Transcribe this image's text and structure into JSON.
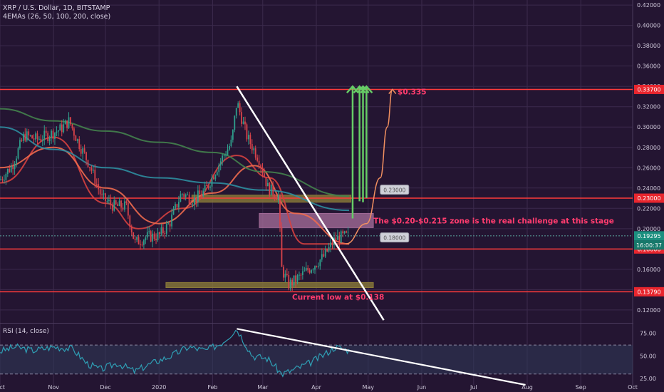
{
  "header": {
    "symbol_line": "XRP / U.S. Dollar, 1D, BITSTAMP",
    "indicator_line": "4EMAs (26, 50, 100, 200, close)",
    "rsi_label": "RSI (14, close)"
  },
  "colors": {
    "background": "#241532",
    "grid": "#3b2a4c",
    "level_line": "#ff3b3b",
    "ema26": "#d6403f",
    "ema50": "#ef6a4e",
    "ema100": "#2d8ea0",
    "ema200": "#44824d",
    "arrow_green": "#66cc66",
    "arrow_orange": "#f29060",
    "annotation_text": "#ff3c6e",
    "zone_olive": "#8a7a38",
    "zone_pink": "#a06a96",
    "rsi_line": "#2f9fb5",
    "last_price_tag": "#1b8f7f"
  },
  "chart_data": {
    "type": "candlestick",
    "title": "XRP / U.S. Dollar, 1D, BITSTAMP",
    "x_ticks": [
      "Oct",
      "Nov",
      "Dec",
      "2020",
      "Feb",
      "Mar",
      "Apr",
      "May",
      "Jun",
      "Jul",
      "Aug",
      "Sep",
      "Oct"
    ],
    "y_ticks": [
      "0.12000",
      "0.14000",
      "0.16000",
      "0.18000",
      "0.20000",
      "0.22000",
      "0.24000",
      "0.26000",
      "0.28000",
      "0.30000",
      "0.32000",
      "0.34000",
      "0.36000",
      "0.38000",
      "0.40000",
      "0.42000"
    ],
    "ylim": [
      0.108,
      0.425
    ],
    "horizontal_levels": [
      {
        "value": 0.337,
        "label": "0.33700"
      },
      {
        "value": 0.23,
        "label": "0.23000"
      },
      {
        "value": 0.18,
        "label": "0.18000"
      },
      {
        "value": 0.1379,
        "label": "0.13790"
      }
    ],
    "last_price": {
      "value": 0.19295,
      "label": "0.19295",
      "countdown": "16:00:37"
    },
    "price_path": [
      [
        "2019-10-01",
        0.248
      ],
      [
        "2019-10-08",
        0.262
      ],
      [
        "2019-10-15",
        0.292
      ],
      [
        "2019-10-22",
        0.288
      ],
      [
        "2019-10-29",
        0.292
      ],
      [
        "2019-11-05",
        0.298
      ],
      [
        "2019-11-10",
        0.306
      ],
      [
        "2019-11-15",
        0.286
      ],
      [
        "2019-11-22",
        0.262
      ],
      [
        "2019-11-29",
        0.23
      ],
      [
        "2019-12-06",
        0.222
      ],
      [
        "2019-12-13",
        0.222
      ],
      [
        "2019-12-18",
        0.186
      ],
      [
        "2019-12-25",
        0.192
      ],
      [
        "2020-01-01",
        0.193
      ],
      [
        "2020-01-07",
        0.205
      ],
      [
        "2020-01-14",
        0.235
      ],
      [
        "2020-01-21",
        0.228
      ],
      [
        "2020-01-28",
        0.238
      ],
      [
        "2020-02-05",
        0.265
      ],
      [
        "2020-02-12",
        0.285
      ],
      [
        "2020-02-15",
        0.325
      ],
      [
        "2020-02-21",
        0.29
      ],
      [
        "2020-02-28",
        0.268
      ],
      [
        "2020-03-04",
        0.24
      ],
      [
        "2020-03-10",
        0.232
      ],
      [
        "2020-03-12",
        0.16
      ],
      [
        "2020-03-16",
        0.145
      ],
      [
        "2020-03-22",
        0.152
      ],
      [
        "2020-03-29",
        0.162
      ],
      [
        "2020-04-05",
        0.172
      ],
      [
        "2020-04-12",
        0.19
      ],
      [
        "2020-04-16",
        0.192
      ],
      [
        "2020-04-20",
        0.193
      ]
    ],
    "ema_series": [
      {
        "name": "EMA 26",
        "points": [
          [
            "2019-10-01",
            0.245
          ],
          [
            "2019-11-01",
            0.29
          ],
          [
            "2019-12-01",
            0.225
          ],
          [
            "2019-12-20",
            0.2
          ],
          [
            "2020-01-15",
            0.22
          ],
          [
            "2020-02-15",
            0.272
          ],
          [
            "2020-03-05",
            0.25
          ],
          [
            "2020-03-25",
            0.185
          ],
          [
            "2020-04-20",
            0.185
          ]
        ]
      },
      {
        "name": "EMA 50",
        "points": [
          [
            "2019-10-01",
            0.26
          ],
          [
            "2019-11-01",
            0.28
          ],
          [
            "2019-12-01",
            0.24
          ],
          [
            "2020-01-01",
            0.205
          ],
          [
            "2020-02-01",
            0.235
          ],
          [
            "2020-02-25",
            0.262
          ],
          [
            "2020-03-20",
            0.215
          ],
          [
            "2020-04-20",
            0.185
          ]
        ]
      },
      {
        "name": "EMA 100",
        "points": [
          [
            "2019-10-01",
            0.3
          ],
          [
            "2019-11-01",
            0.278
          ],
          [
            "2019-12-01",
            0.26
          ],
          [
            "2020-01-01",
            0.25
          ],
          [
            "2020-02-01",
            0.245
          ],
          [
            "2020-03-01",
            0.238
          ],
          [
            "2020-04-20",
            0.218
          ]
        ]
      },
      {
        "name": "EMA 200",
        "points": [
          [
            "2019-10-01",
            0.318
          ],
          [
            "2019-11-01",
            0.306
          ],
          [
            "2019-12-01",
            0.296
          ],
          [
            "2020-01-01",
            0.285
          ],
          [
            "2020-02-01",
            0.275
          ],
          [
            "2020-03-01",
            0.256
          ],
          [
            "2020-04-20",
            0.232
          ]
        ]
      }
    ],
    "trendline": {
      "from": [
        "2020-02-15",
        0.34
      ],
      "to": [
        "2020-05-10",
        0.11
      ]
    },
    "zones": [
      {
        "from": "2020-01-20",
        "to": "2020-04-21",
        "y_low": 0.226,
        "y_high": 0.233,
        "style": "olive"
      },
      {
        "from": "2020-02-28",
        "to": "2020-05-04",
        "y_low": 0.201,
        "y_high": 0.215,
        "style": "pink"
      },
      {
        "from": "2020-01-05",
        "to": "2020-05-04",
        "y_low": 0.142,
        "y_high": 0.147,
        "style": "olive"
      }
    ],
    "projections": [
      {
        "x": "2020-04-22",
        "from": 0.21,
        "to": 0.34,
        "kind": "green"
      },
      {
        "x": "2020-04-28",
        "from": 0.226,
        "to": 0.34,
        "kind": "green"
      },
      {
        "x": "2020-04-26",
        "from": 0.227,
        "to": 0.34,
        "kind": "green"
      },
      {
        "x": "2020-04-30",
        "from": 0.23,
        "to": 0.34,
        "kind": "green"
      }
    ],
    "projection_curve": {
      "points": [
        [
          "2020-04-18",
          0.185
        ],
        [
          "2020-04-30",
          0.205
        ],
        [
          "2020-05-08",
          0.25
        ],
        [
          "2020-05-12",
          0.3
        ],
        [
          "2020-05-15",
          0.337
        ]
      ],
      "kind": "orange"
    },
    "price_labels": [
      {
        "text": "0.23000",
        "at": [
          "2020-05-08",
          0.238
        ]
      },
      {
        "text": "0.18000",
        "at": [
          "2020-05-08",
          0.191
        ]
      }
    ],
    "annotations": [
      {
        "text": "$0.335",
        "at": [
          "2020-05-18",
          0.332
        ]
      },
      {
        "text": "The $0.20-$0.215 zone is the real challenge at this stage",
        "at": [
          "2020-05-04",
          0.205
        ]
      },
      {
        "text": "Current low at $0.138",
        "at": [
          "2020-03-18",
          0.13
        ]
      }
    ],
    "rsi": {
      "label": "RSI (14, close)",
      "y_ticks": [
        "25.00",
        "50.00",
        "75.00"
      ],
      "ylim": [
        18,
        85
      ],
      "band": [
        30,
        62
      ],
      "points": [
        [
          "2019-10-01",
          55
        ],
        [
          "2019-10-10",
          60
        ],
        [
          "2019-10-20",
          56
        ],
        [
          "2019-11-01",
          60
        ],
        [
          "2019-11-12",
          58
        ],
        [
          "2019-11-20",
          42
        ],
        [
          "2019-11-28",
          35
        ],
        [
          "2019-12-08",
          42
        ],
        [
          "2019-12-18",
          33
        ],
        [
          "2019-12-28",
          42
        ],
        [
          "2020-01-08",
          50
        ],
        [
          "2020-01-18",
          60
        ],
        [
          "2020-01-28",
          56
        ],
        [
          "2020-02-06",
          64
        ],
        [
          "2020-02-15",
          80
        ],
        [
          "2020-02-24",
          50
        ],
        [
          "2020-03-04",
          47
        ],
        [
          "2020-03-12",
          30
        ],
        [
          "2020-03-18",
          34
        ],
        [
          "2020-03-28",
          42
        ],
        [
          "2020-04-06",
          52
        ],
        [
          "2020-04-12",
          60
        ],
        [
          "2020-04-20",
          56
        ]
      ],
      "trendline": {
        "from": [
          "2020-02-15",
          80
        ],
        "to": [
          "2020-07-31",
          18
        ]
      }
    }
  }
}
